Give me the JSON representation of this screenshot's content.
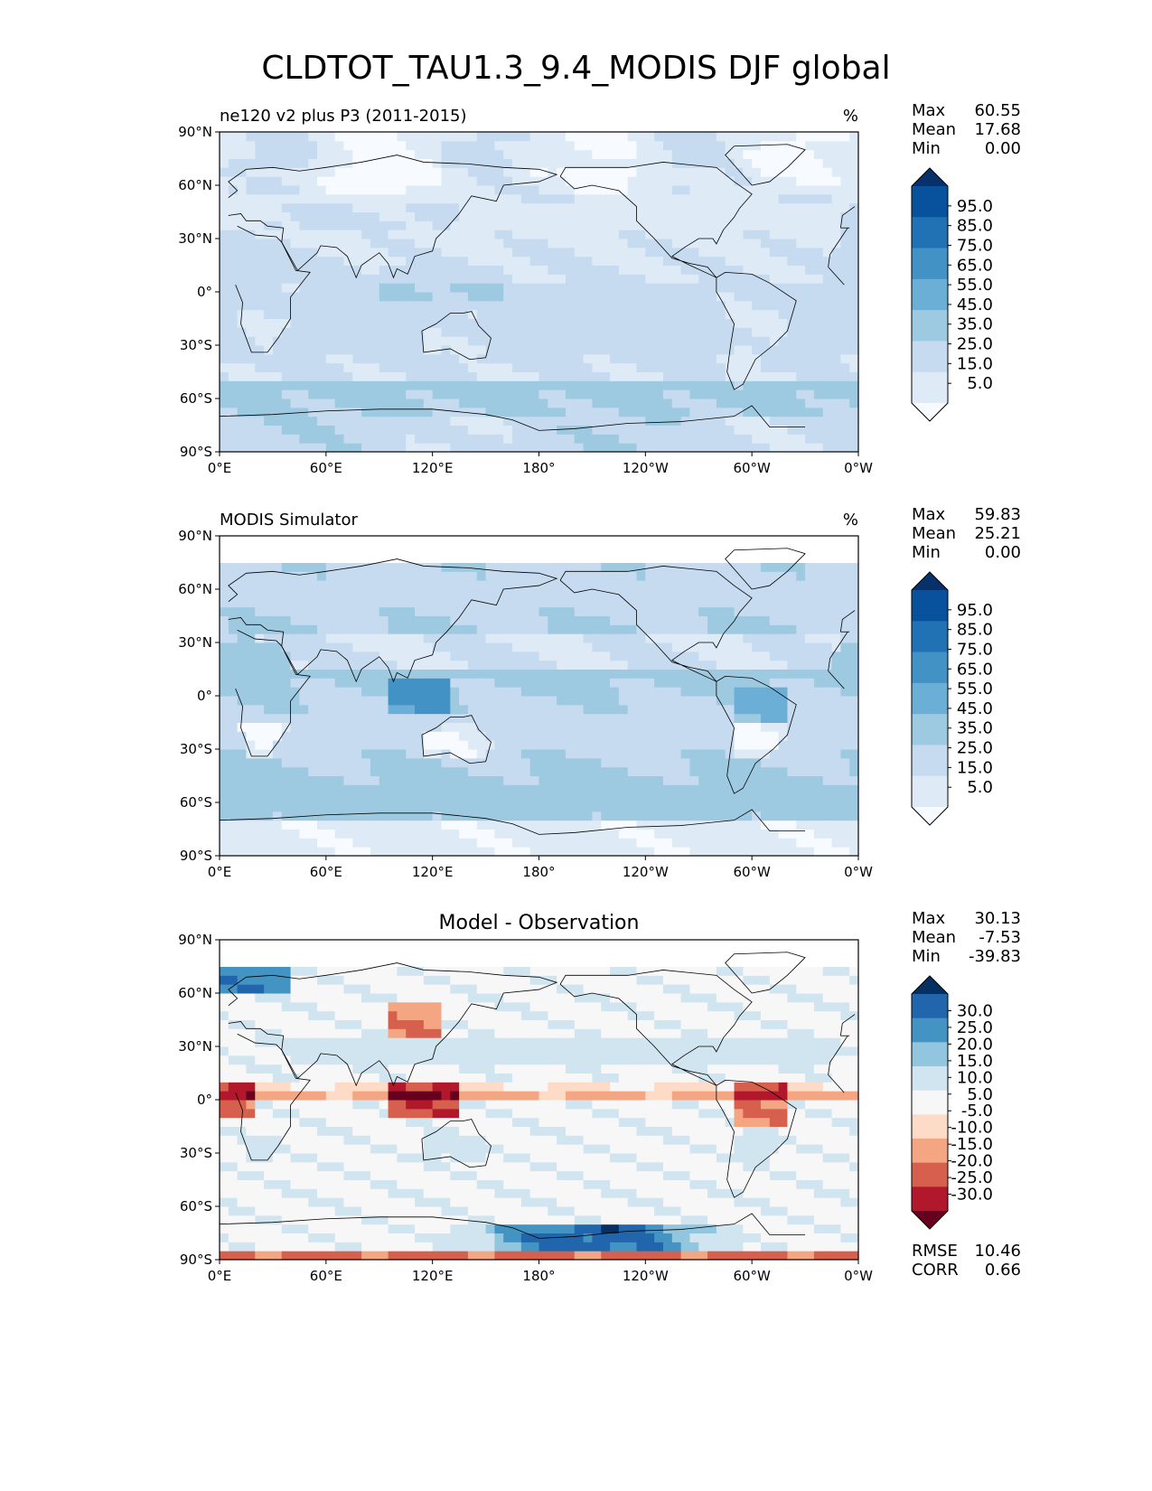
{
  "title": "CLDTOT_TAU1.3_9.4_MODIS DJF global",
  "colors": {
    "blues": [
      "#f7fbff",
      "#deebf7",
      "#c6dbef",
      "#9ecae1",
      "#6baed6",
      "#4292c6",
      "#2171b5",
      "#08519c",
      "#08306b"
    ],
    "rdbu": [
      "#67001f",
      "#b2182b",
      "#d6604d",
      "#f4a582",
      "#fddbc7",
      "#f7f7f7",
      "#d1e5f0",
      "#92c5de",
      "#4393c3",
      "#2166ac",
      "#053061"
    ],
    "coast": "#000000"
  },
  "chart_data": [
    {
      "type": "heatmap",
      "left_title": "ne120 v2 plus P3 (2011-2015)",
      "units": "%",
      "stats": {
        "Max": "60.55",
        "Mean": "17.68",
        "Min": "0.00"
      },
      "colorbar_ticks": [
        "95.0",
        "85.0",
        "75.0",
        "65.0",
        "55.0",
        "45.0",
        "35.0",
        "25.0",
        "15.0",
        "5.0"
      ],
      "colorbar_palette": "blues",
      "x_ticks": [
        "0°E",
        "60°E",
        "120°E",
        "180°",
        "120°W",
        "60°W",
        "0°W"
      ],
      "y_ticks": [
        "90°N",
        "60°N",
        "30°N",
        "0°",
        "30°S",
        "60°S",
        "90°S"
      ],
      "xlim": [
        0,
        360
      ],
      "ylim": [
        -90,
        90
      ],
      "field": "model"
    },
    {
      "type": "heatmap",
      "left_title": "MODIS Simulator",
      "units": "%",
      "stats": {
        "Max": "59.83",
        "Mean": "25.21",
        "Min": "0.00"
      },
      "colorbar_ticks": [
        "95.0",
        "85.0",
        "75.0",
        "65.0",
        "55.0",
        "45.0",
        "35.0",
        "25.0",
        "15.0",
        "5.0"
      ],
      "colorbar_palette": "blues",
      "x_ticks": [
        "0°E",
        "60°E",
        "120°E",
        "180°",
        "120°W",
        "60°W",
        "0°W"
      ],
      "y_ticks": [
        "90°N",
        "60°N",
        "30°N",
        "0°",
        "30°S",
        "60°S",
        "90°S"
      ],
      "xlim": [
        0,
        360
      ],
      "ylim": [
        -90,
        90
      ],
      "field": "obs"
    },
    {
      "type": "heatmap",
      "center_title": "Model - Observation",
      "stats": {
        "Max": "30.13",
        "Mean": "-7.53",
        "Min": "-39.83"
      },
      "extra_stats": {
        "RMSE": "10.46",
        "CORR": "0.66"
      },
      "colorbar_ticks": [
        "30.0",
        "25.0",
        "20.0",
        "15.0",
        "10.0",
        "5.0",
        "-5.0",
        "-10.0",
        "-15.0",
        "-20.0",
        "-25.0",
        "-30.0"
      ],
      "colorbar_palette": "rdbu",
      "x_ticks": [
        "0°E",
        "60°E",
        "120°E",
        "180°",
        "120°W",
        "60°W",
        "0°W"
      ],
      "y_ticks": [
        "90°N",
        "60°N",
        "30°N",
        "0°",
        "30°S",
        "60°S",
        "90°S"
      ],
      "xlim": [
        0,
        360
      ],
      "ylim": [
        -90,
        90
      ],
      "field": "diff"
    }
  ]
}
